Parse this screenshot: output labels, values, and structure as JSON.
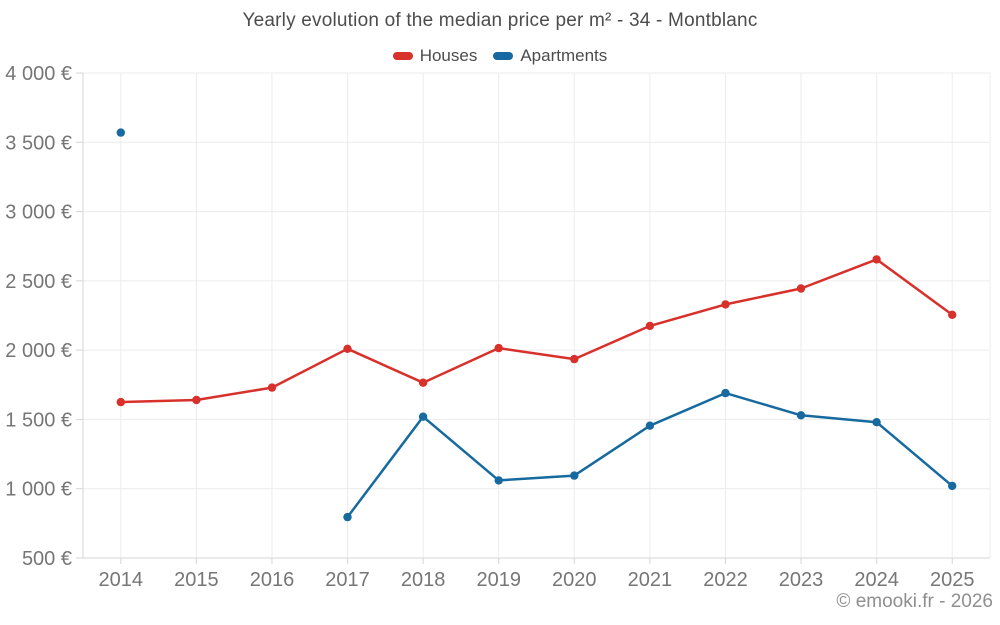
{
  "chart_data": {
    "type": "line",
    "title": "Yearly evolution of the median price per m² - 34 - Montblanc",
    "xlabel": "",
    "ylabel": "",
    "categories": [
      "2014",
      "2015",
      "2016",
      "2017",
      "2018",
      "2019",
      "2020",
      "2021",
      "2022",
      "2023",
      "2024",
      "2025"
    ],
    "series": [
      {
        "name": "Houses",
        "color": "#d8302a",
        "values": [
          1625,
          1640,
          1730,
          2010,
          1765,
          2015,
          1935,
          2175,
          2330,
          2445,
          2655,
          2255
        ]
      },
      {
        "name": "Apartments",
        "color": "#166a9f",
        "values": [
          3570,
          null,
          null,
          795,
          1520,
          1060,
          1095,
          1455,
          1690,
          1530,
          1480,
          1020
        ]
      }
    ],
    "ylim": [
      500,
      4000
    ],
    "y_ticks": [
      {
        "value": 500,
        "label": "500 €"
      },
      {
        "value": 1000,
        "label": "1 000 €"
      },
      {
        "value": 1500,
        "label": "1 500 €"
      },
      {
        "value": 2000,
        "label": "2 000 €"
      },
      {
        "value": 2500,
        "label": "2 500 €"
      },
      {
        "value": 3000,
        "label": "3 000 €"
      },
      {
        "value": 3500,
        "label": "3 500 €"
      },
      {
        "value": 4000,
        "label": "4 000 €"
      }
    ],
    "grid": true,
    "legend_position": "top"
  },
  "footer": {
    "copyright": "© emooki.fr - 2026"
  },
  "colors": {
    "background": "#ffffff",
    "title_text": "#4c4c4c",
    "axis_text": "#767676",
    "grid_line": "#ececec",
    "axis_line": "#d6d6d6",
    "houses": "#d8302a",
    "apartments": "#166a9f"
  }
}
